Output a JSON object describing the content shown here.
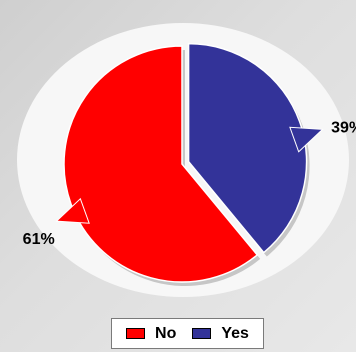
{
  "chart_data": {
    "type": "pie",
    "slices": [
      {
        "label": "Yes",
        "value": 39,
        "value_label": "39%",
        "color": "#333399"
      },
      {
        "label": "No",
        "value": 61,
        "value_label": "61%",
        "color": "#ff0000"
      }
    ],
    "legend": {
      "placement": "bottom",
      "items": [
        "No",
        "Yes"
      ]
    },
    "background_ellipse_color": "#f7f7f7",
    "exploded_slice": "Yes"
  }
}
